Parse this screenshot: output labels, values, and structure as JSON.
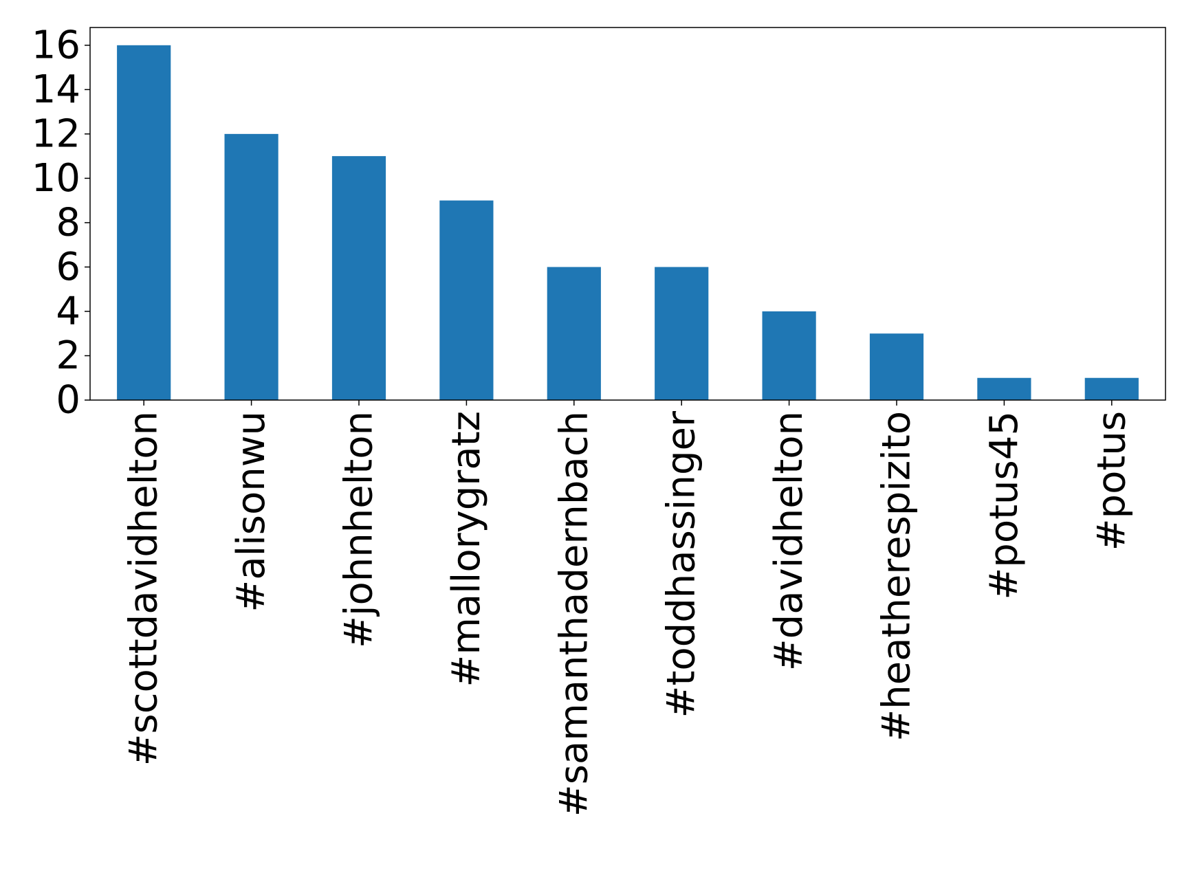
{
  "chart_data": {
    "type": "bar",
    "title": "",
    "xlabel": "",
    "ylabel": "",
    "categories": [
      "#scottdavidhelton",
      "#alisonwu",
      "#johnhelton",
      "#mallorygratz",
      "#samanthadernbach",
      "#toddhassinger",
      "#davidhelton",
      "#heatherespizito",
      "#potus45",
      "#potus"
    ],
    "values": [
      16,
      12,
      11,
      9,
      6,
      6,
      4,
      3,
      1,
      1
    ],
    "ylim": [
      0,
      16.8
    ],
    "yticks": [
      0,
      2,
      4,
      6,
      8,
      10,
      12,
      14,
      16
    ],
    "ytick_labels": [
      "0",
      "2",
      "4",
      "6",
      "8",
      "10",
      "12",
      "14",
      "16"
    ],
    "bar_color": "#1f77b4",
    "grid": false,
    "legend": "none"
  }
}
